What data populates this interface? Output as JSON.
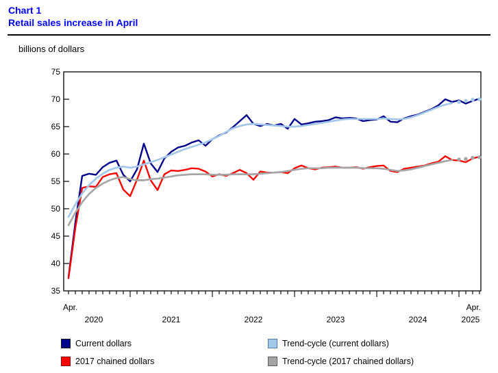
{
  "header": {
    "chart_label": "Chart 1",
    "title": "Retail sales increase in April"
  },
  "unit_label": "billions of dollars",
  "colors": {
    "title_blue": "#0000FF",
    "axis_black": "#000000",
    "current": "#00008B",
    "chained": "#FF0000",
    "trend_current": "#A3C7EA",
    "trend_chained": "#A6A6A6"
  },
  "legend": [
    {
      "label": "Current dollars",
      "fill": "#00008B",
      "border": "#1a1a1a"
    },
    {
      "label": "Trend-cycle (current dollars)",
      "fill": "#A3C7EA",
      "border": "#4E7AA8"
    },
    {
      "label": "2017 chained dollars",
      "fill": "#FF0000",
      "border": "#8B0000"
    },
    {
      "label": "Trend-cycle (2017 chained dollars)",
      "fill": "#A6A6A6",
      "border": "#5A5A5A"
    }
  ],
  "x_axis": {
    "start_label": "Apr.",
    "end_label": "Apr.",
    "year_labels": [
      "2020",
      "2021",
      "2022",
      "2023",
      "2024",
      "2025"
    ]
  },
  "y_axis": {
    "tick_values": [
      35,
      40,
      45,
      50,
      55,
      60,
      65,
      70,
      75
    ]
  },
  "chart_data": {
    "type": "line",
    "title": "Retail sales increase in April",
    "ylabel": "billions of dollars",
    "x_start": "2020-04",
    "x_end": "2025-04",
    "frequency": "monthly",
    "n_points": 61,
    "ylim": [
      35,
      75
    ],
    "y_ticks": [
      35,
      40,
      45,
      50,
      55,
      60,
      65,
      70,
      75
    ],
    "x_tick_years": [
      "2020",
      "2021",
      "2022",
      "2023",
      "2024",
      "2025"
    ],
    "legend_position": "bottom",
    "grid": false,
    "series": [
      {
        "name": "Current dollars",
        "color": "#00008B",
        "style": "solid",
        "width": 2.4,
        "values": [
          37.5,
          47.5,
          56.0,
          56.4,
          56.2,
          57.6,
          58.4,
          58.8,
          56.2,
          55.0,
          57.2,
          61.9,
          58.3,
          56.7,
          59.2,
          60.4,
          61.2,
          61.5,
          62.1,
          62.5,
          61.5,
          62.7,
          63.4,
          63.9,
          64.9,
          66.0,
          67.1,
          65.5,
          65.1,
          65.5,
          65.2,
          65.5,
          64.6,
          66.4,
          65.4,
          65.6,
          65.9,
          66.0,
          66.2,
          66.7,
          66.5,
          66.6,
          66.5,
          66.0,
          66.2,
          66.3,
          66.9,
          65.9,
          65.8,
          66.5,
          66.9,
          67.2,
          67.7,
          68.2,
          68.9,
          70.0,
          69.5,
          69.8,
          69.2,
          69.7,
          70.1
        ]
      },
      {
        "name": "2017 chained dollars",
        "color": "#FF0000",
        "style": "solid",
        "width": 2.4,
        "values": [
          37.3,
          46.5,
          53.8,
          54.1,
          54.0,
          55.8,
          56.3,
          56.5,
          53.5,
          52.3,
          55.3,
          58.8,
          55.2,
          53.4,
          56.3,
          57.0,
          56.9,
          57.1,
          57.4,
          57.3,
          56.8,
          55.9,
          56.3,
          56.0,
          56.5,
          57.1,
          56.5,
          55.3,
          56.8,
          56.6,
          56.6,
          56.7,
          56.5,
          57.4,
          57.9,
          57.4,
          57.2,
          57.5,
          57.6,
          57.7,
          57.5,
          57.5,
          57.6,
          57.3,
          57.6,
          57.8,
          57.9,
          56.9,
          56.7,
          57.3,
          57.5,
          57.7,
          57.9,
          58.3,
          58.6,
          59.6,
          58.9,
          58.8,
          58.5,
          59.2,
          59.5
        ]
      },
      {
        "name": "Trend-cycle (current dollars)",
        "color": "#A3C7EA",
        "style": "solid_with_dotted_tail",
        "dotted_tail_points": 4,
        "width": 2.7,
        "values": [
          48.5,
          50.8,
          52.8,
          54.3,
          55.5,
          56.4,
          57.1,
          57.5,
          57.7,
          57.5,
          57.7,
          58.1,
          58.5,
          58.9,
          59.4,
          59.9,
          60.4,
          60.9,
          61.3,
          61.7,
          62.1,
          62.7,
          63.3,
          64.0,
          64.7,
          65.1,
          65.4,
          65.5,
          65.4,
          65.3,
          65.2,
          65.1,
          65.0,
          65.0,
          65.1,
          65.3,
          65.5,
          65.7,
          65.9,
          66.1,
          66.3,
          66.4,
          66.4,
          66.4,
          66.4,
          66.4,
          66.5,
          66.4,
          66.3,
          66.4,
          66.7,
          67.1,
          67.6,
          68.1,
          68.6,
          69.0,
          69.3,
          69.5,
          69.7,
          69.9,
          70.0
        ]
      },
      {
        "name": "Trend-cycle (2017 chained dollars)",
        "color": "#A6A6A6",
        "style": "solid_with_dotted_tail",
        "dotted_tail_points": 4,
        "width": 2.7,
        "values": [
          47.0,
          49.3,
          51.2,
          52.7,
          53.8,
          54.6,
          55.2,
          55.6,
          55.8,
          55.4,
          55.2,
          55.2,
          55.4,
          55.5,
          55.7,
          55.9,
          56.1,
          56.2,
          56.3,
          56.3,
          56.3,
          56.2,
          56.2,
          56.2,
          56.3,
          56.3,
          56.3,
          56.3,
          56.4,
          56.5,
          56.6,
          56.7,
          56.9,
          57.1,
          57.3,
          57.4,
          57.4,
          57.4,
          57.5,
          57.5,
          57.5,
          57.5,
          57.5,
          57.4,
          57.4,
          57.4,
          57.3,
          57.1,
          56.9,
          57.0,
          57.2,
          57.5,
          57.8,
          58.1,
          58.4,
          58.7,
          58.9,
          59.0,
          59.1,
          59.3,
          59.4
        ]
      }
    ]
  }
}
